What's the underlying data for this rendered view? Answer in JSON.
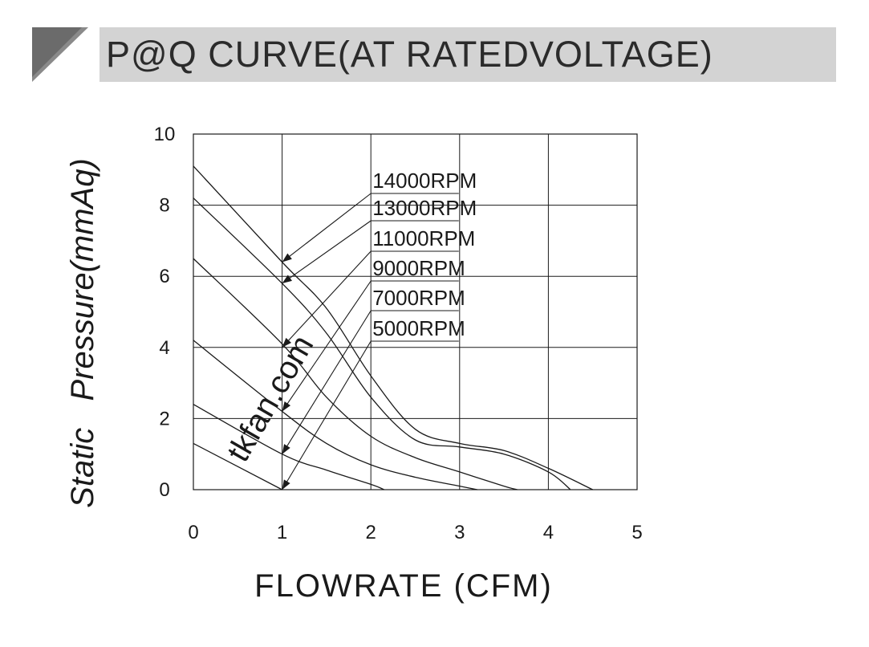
{
  "header": {
    "title": "P@Q CURVE(AT RATEDVOLTAGE)"
  },
  "watermark": "tkfan.com",
  "colors": {
    "line": "#1a1a1a",
    "banner_bar": "#d3d3d3",
    "banner_block": "#6b6b6b"
  },
  "chart_data": {
    "type": "line",
    "title": "",
    "xlabel": "FLOWRATE (CFM)",
    "ylabel": "Static   Pressure(mmAq)",
    "xlim": [
      0,
      5
    ],
    "ylim": [
      0,
      10
    ],
    "x_ticks": [
      "0",
      "1",
      "2",
      "3",
      "4",
      "5"
    ],
    "y_ticks": [
      "0",
      "2",
      "4",
      "6",
      "8",
      "10"
    ],
    "grid": true,
    "series": [
      {
        "name": "14000RPM",
        "points": [
          [
            0,
            9.1
          ],
          [
            1,
            6.4
          ],
          [
            1.5,
            5.1
          ],
          [
            2,
            3.2
          ],
          [
            2.5,
            1.7
          ],
          [
            3,
            1.3
          ],
          [
            3.5,
            1.1
          ],
          [
            4,
            0.6
          ],
          [
            4.5,
            0
          ]
        ]
      },
      {
        "name": "13000RPM",
        "points": [
          [
            0,
            8.2
          ],
          [
            1,
            5.8
          ],
          [
            1.5,
            4.4
          ],
          [
            2,
            2.6
          ],
          [
            2.5,
            1.4
          ],
          [
            3,
            1.2
          ],
          [
            3.5,
            1.0
          ],
          [
            4,
            0.5
          ],
          [
            4.25,
            0
          ]
        ]
      },
      {
        "name": "11000RPM",
        "points": [
          [
            0,
            6.5
          ],
          [
            1,
            4.1
          ],
          [
            1.5,
            2.6
          ],
          [
            2,
            1.5
          ],
          [
            2.5,
            0.9
          ],
          [
            3,
            0.5
          ],
          [
            3.5,
            0.1
          ],
          [
            3.65,
            0
          ]
        ]
      },
      {
        "name": "9000RPM",
        "points": [
          [
            0,
            4.2
          ],
          [
            1,
            2.2
          ],
          [
            1.5,
            1.3
          ],
          [
            2,
            0.7
          ],
          [
            2.5,
            0.35
          ],
          [
            3,
            0.1
          ],
          [
            3.2,
            0
          ]
        ]
      },
      {
        "name": "7000RPM",
        "points": [
          [
            0,
            2.4
          ],
          [
            1,
            1.0
          ],
          [
            1.5,
            0.55
          ],
          [
            2,
            0.15
          ],
          [
            2.15,
            0
          ]
        ]
      },
      {
        "name": "5000RPM",
        "points": [
          [
            0,
            1.3
          ],
          [
            1,
            0
          ]
        ]
      }
    ],
    "annotations": [
      {
        "label": "14000RPM",
        "target": [
          1,
          6.4
        ]
      },
      {
        "label": "13000RPM",
        "target": [
          1,
          5.8
        ]
      },
      {
        "label": "11000RPM",
        "target": [
          1,
          4.0
        ]
      },
      {
        "label": "9000RPM",
        "target": [
          1,
          2.2
        ]
      },
      {
        "label": "7000RPM",
        "target": [
          1,
          1.0
        ]
      },
      {
        "label": "5000RPM",
        "target": [
          1,
          0
        ]
      }
    ]
  }
}
